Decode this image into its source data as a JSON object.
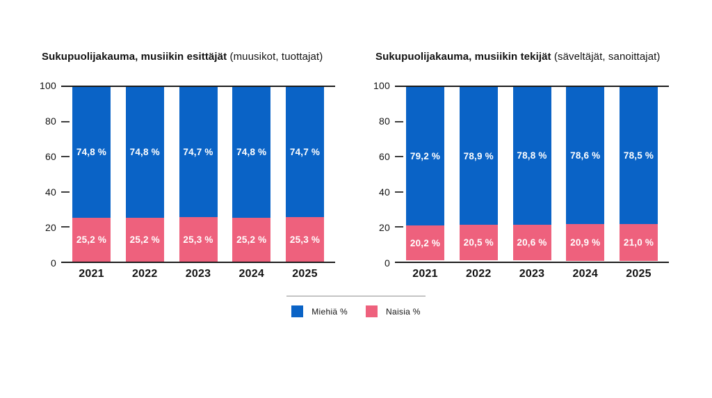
{
  "colors": {
    "men_blue": "#0A63C6",
    "women_pink": "#EE617D",
    "axis_line": "#1B1B1B",
    "tick_mark": "#3D3D3D",
    "text": "#111111",
    "legend_divider": "#8F8F8F",
    "value_label_text": "#FFFFFF",
    "background": "#FFFFFF"
  },
  "chart_data": [
    {
      "type": "bar",
      "stacked": true,
      "title_bold": "Sukupuolijakauma, musiikin esittäjät",
      "title_note": "(muusikot, tuottajat)",
      "categories": [
        "2021",
        "2022",
        "2023",
        "2024",
        "2025"
      ],
      "series": [
        {
          "name": "Miehiä %",
          "color": "#0A63C6",
          "values": [
            74.8,
            74.8,
            74.7,
            74.8,
            74.7
          ],
          "labels": [
            "74,8 %",
            "74,8 %",
            "74,7 %",
            "74,8 %",
            "74,7 %"
          ]
        },
        {
          "name": "Naisia %",
          "color": "#EE617D",
          "values": [
            25.2,
            25.2,
            25.3,
            25.2,
            25.3
          ],
          "labels": [
            "25,2 %",
            "25,2 %",
            "25,3 %",
            "25,2 %",
            "25,3 %"
          ]
        }
      ],
      "ylim": [
        0,
        100
      ],
      "yticks": [
        0,
        20,
        40,
        60,
        80,
        100
      ],
      "grid": false,
      "legend_position": "bottom"
    },
    {
      "type": "bar",
      "stacked": true,
      "title_bold": "Sukupuolijakauma, musiikin tekijät",
      "title_note": "(säveltäjät, sanoittajat)",
      "categories": [
        "2021",
        "2022",
        "2023",
        "2024",
        "2025"
      ],
      "series": [
        {
          "name": "Miehiä %",
          "color": "#0A63C6",
          "values": [
            79.2,
            78.9,
            78.8,
            78.6,
            78.5
          ],
          "labels": [
            "79,2 %",
            "78,9 %",
            "78,8 %",
            "78,6 %",
            "78,5 %"
          ]
        },
        {
          "name": "Naisia %",
          "color": "#EE617D",
          "values": [
            20.2,
            20.5,
            20.6,
            20.9,
            21.0
          ],
          "labels": [
            "20,2 %",
            "20,5 %",
            "20,6 %",
            "20,9 %",
            "21,0 %"
          ]
        }
      ],
      "ylim": [
        0,
        100
      ],
      "yticks": [
        0,
        20,
        40,
        60,
        80,
        100
      ],
      "grid": false,
      "legend_position": "bottom"
    }
  ],
  "legend": {
    "items": [
      {
        "label": "Miehiä %",
        "color": "#0A63C6"
      },
      {
        "label": "Naisia %",
        "color": "#EE617D"
      }
    ]
  }
}
